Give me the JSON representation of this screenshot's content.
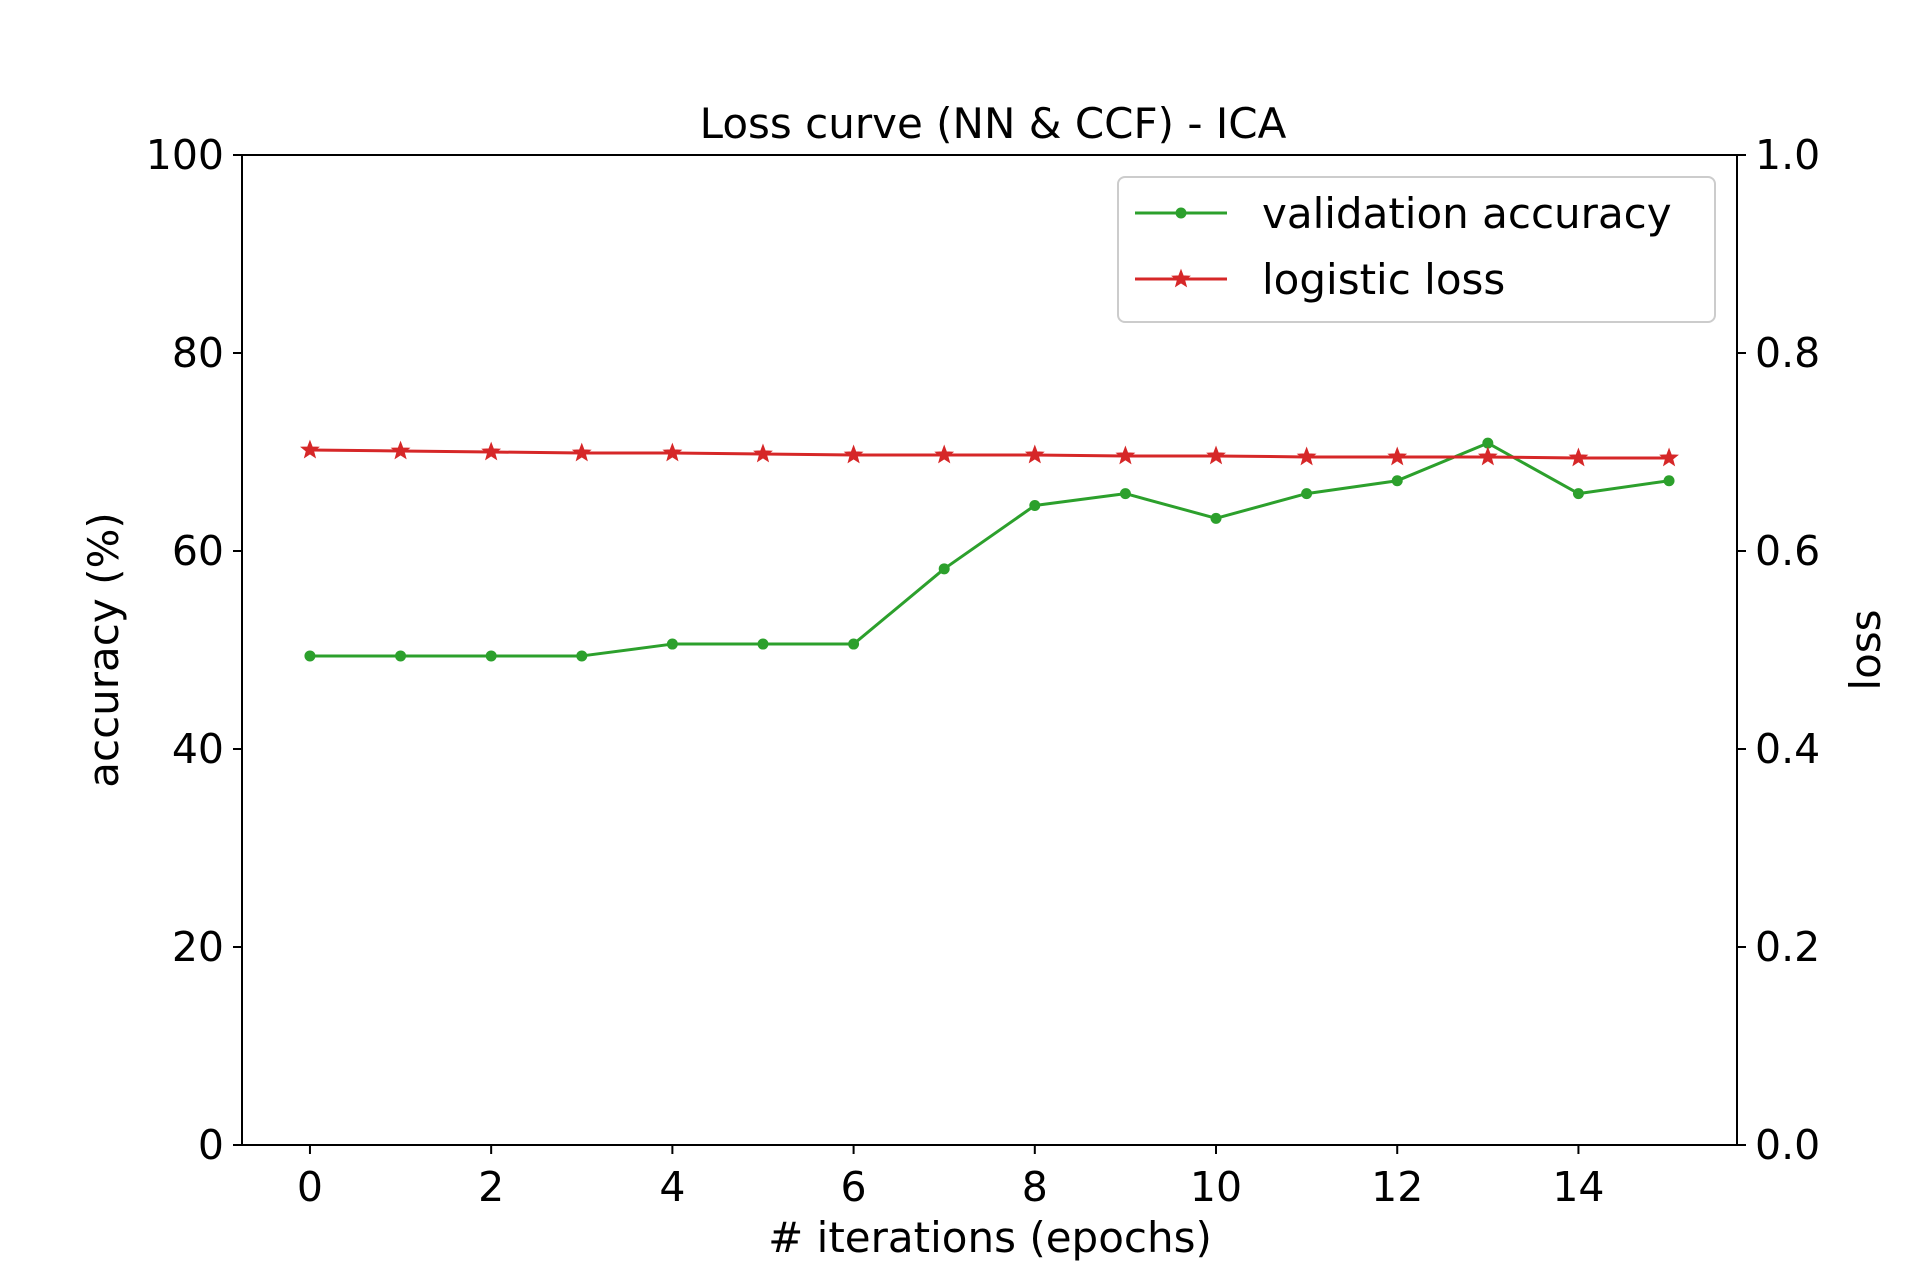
{
  "chart_data": {
    "type": "line",
    "title": "Loss curve (NN & CCF) - ICA",
    "xlabel": "# iterations (epochs)",
    "ylabel": "accuracy (%)",
    "y2label": "loss",
    "xlim": [
      -0.75,
      15.75
    ],
    "ylim": [
      0,
      100
    ],
    "y2lim": [
      0.0,
      1.0
    ],
    "xticks": [
      "0",
      "2",
      "4",
      "6",
      "8",
      "10",
      "12",
      "14"
    ],
    "yticks": [
      "0",
      "20",
      "40",
      "60",
      "80",
      "100"
    ],
    "y2ticks": [
      "0.0",
      "0.2",
      "0.4",
      "0.6",
      "0.8",
      "1.0"
    ],
    "grid": false,
    "legend_position": "top-right",
    "series": [
      {
        "name": "validation accuracy",
        "axis": "left",
        "color": "#2ca02c",
        "marker": "circle",
        "x": [
          0,
          1,
          2,
          3,
          4,
          5,
          6,
          7,
          8,
          9,
          10,
          11,
          12,
          13,
          14,
          15
        ],
        "values": [
          49.4,
          49.4,
          49.4,
          49.4,
          50.6,
          50.6,
          50.6,
          58.2,
          64.6,
          65.8,
          63.3,
          65.8,
          67.1,
          70.9,
          65.8,
          67.1
        ]
      },
      {
        "name": "logistic loss",
        "axis": "right",
        "color": "#d62728",
        "marker": "star",
        "x": [
          0,
          1,
          2,
          3,
          4,
          5,
          6,
          7,
          8,
          9,
          10,
          11,
          12,
          13,
          14,
          15
        ],
        "values": [
          0.702,
          0.701,
          0.7,
          0.699,
          0.699,
          0.698,
          0.697,
          0.697,
          0.697,
          0.696,
          0.696,
          0.695,
          0.695,
          0.695,
          0.694,
          0.694
        ]
      }
    ]
  }
}
